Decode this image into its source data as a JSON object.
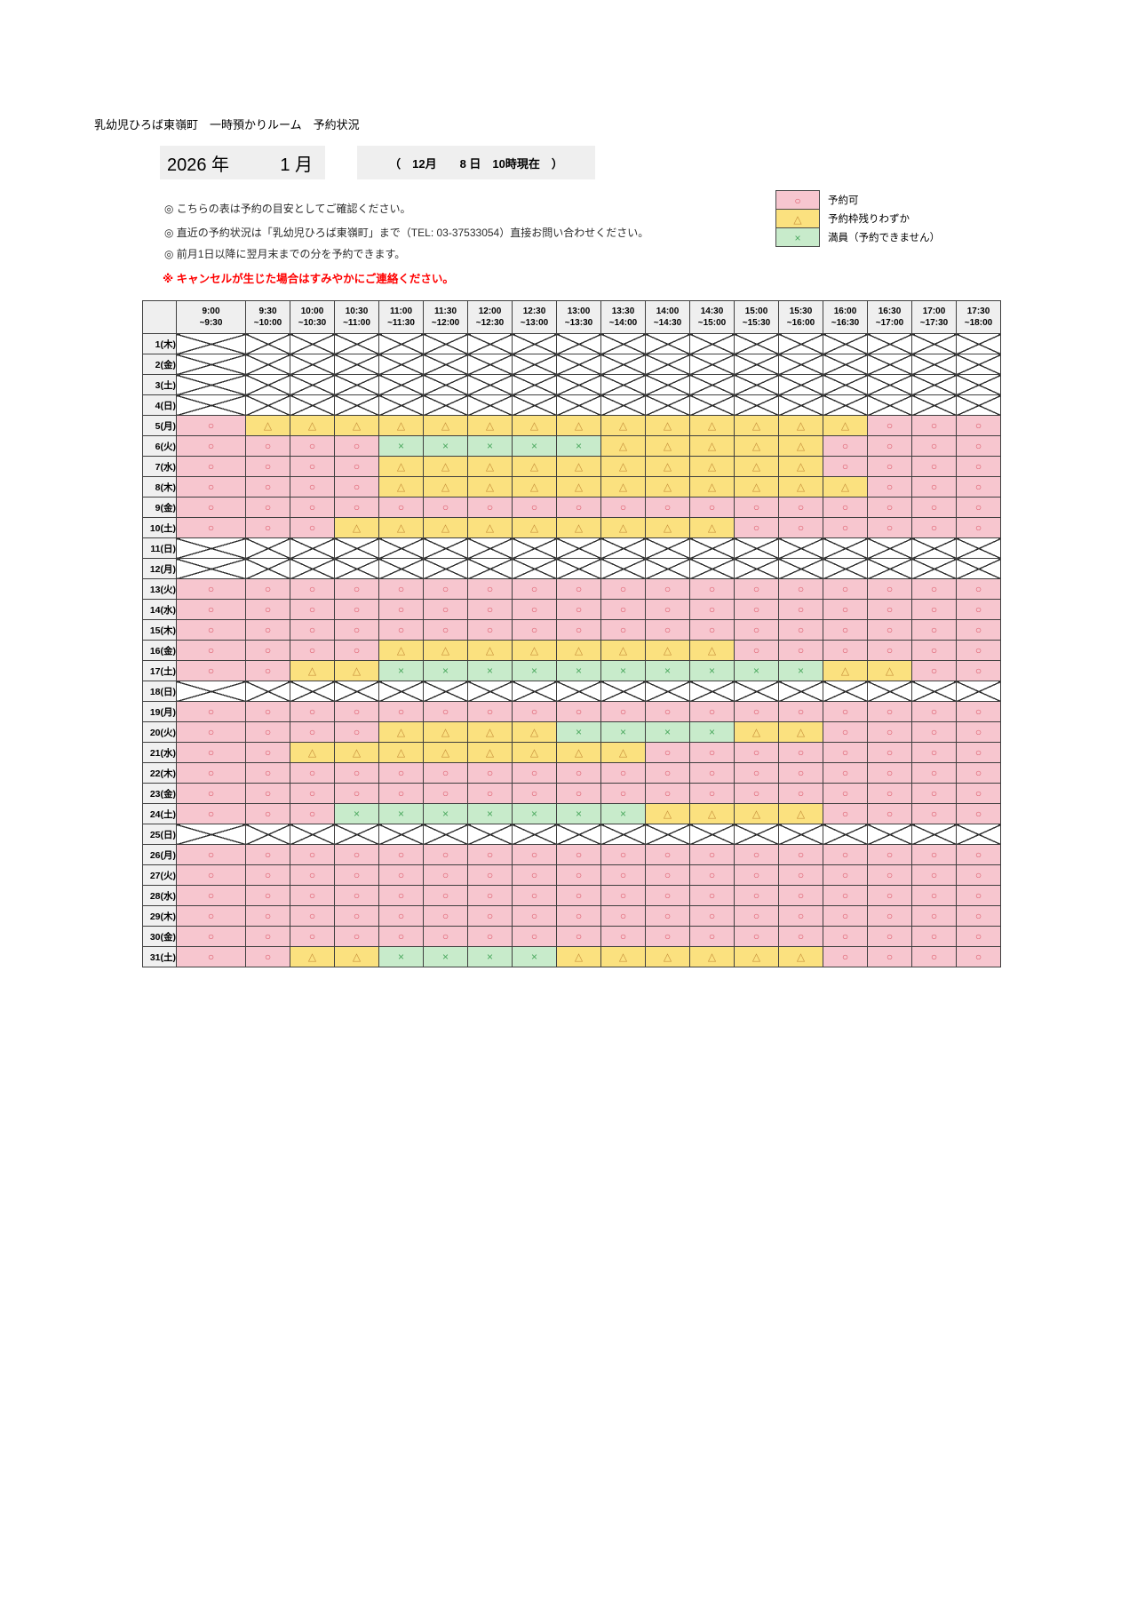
{
  "page": {
    "title": "乳幼児ひろば東嶺町　一時預かりルーム　予約状況"
  },
  "period": {
    "year_label": "2026 年",
    "month_label": "1 月"
  },
  "as_of_label": "（　12月　　8 日　10時現在　）",
  "notes": [
    "◎ こちらの表は予約の目安としてご確認ください。",
    "◎ 直近の予約状況は「乳幼児ひろば東嶺町」まで（TEL: 03-37533054）直接お問い合わせください。",
    "◎ 前月1日以降に翌月末までの分を予約できます。"
  ],
  "cancel_note": "※ キャンセルが生じた場合はすみやかにご連絡ください。",
  "legend": [
    {
      "code": "O",
      "symbol": "○",
      "label": "予約可"
    },
    {
      "code": "T",
      "symbol": "△",
      "label": "予約枠残りわずか"
    },
    {
      "code": "X",
      "symbol": "×",
      "label": "満員（予約できません）"
    }
  ],
  "status_map": {
    "O": {
      "symbol": "○",
      "bg": "#F7C6CF",
      "fg": "#DB5666",
      "meaning": "予約可"
    },
    "T": {
      "symbol": "△",
      "bg": "#FBE17F",
      "fg": "#C8913C",
      "meaning": "予約枠残りわずか"
    },
    "X": {
      "symbol": "×",
      "bg": "#C8EBCB",
      "fg": "#4BA95F",
      "meaning": "満員（予約できません）"
    }
  },
  "table": {
    "time_slots": [
      {
        "start": "9:00",
        "end": "~9:30"
      },
      {
        "start": "9:30",
        "end": "~10:00"
      },
      {
        "start": "10:00",
        "end": "~10:30"
      },
      {
        "start": "10:30",
        "end": "~11:00"
      },
      {
        "start": "11:00",
        "end": "~11:30"
      },
      {
        "start": "11:30",
        "end": "~12:00"
      },
      {
        "start": "12:00",
        "end": "~12:30"
      },
      {
        "start": "12:30",
        "end": "~13:00"
      },
      {
        "start": "13:00",
        "end": "~13:30"
      },
      {
        "start": "13:30",
        "end": "~14:00"
      },
      {
        "start": "14:00",
        "end": "~14:30"
      },
      {
        "start": "14:30",
        "end": "~15:00"
      },
      {
        "start": "15:00",
        "end": "~15:30"
      },
      {
        "start": "15:30",
        "end": "~16:00"
      },
      {
        "start": "16:00",
        "end": "~16:30"
      },
      {
        "start": "16:30",
        "end": "~17:00"
      },
      {
        "start": "17:00",
        "end": "~17:30"
      },
      {
        "start": "17:30",
        "end": "~18:00"
      }
    ],
    "rows": [
      {
        "date": "1(木)",
        "closed": true,
        "cells": ""
      },
      {
        "date": "2(金)",
        "closed": true,
        "cells": ""
      },
      {
        "date": "3(土)",
        "closed": true,
        "cells": ""
      },
      {
        "date": "4(日)",
        "closed": true,
        "cells": ""
      },
      {
        "date": "5(月)",
        "closed": false,
        "cells": "OTTTTTTTTTTTTTTOOO"
      },
      {
        "date": "6(火)",
        "closed": false,
        "cells": "OOOOXXXXXTTTTTOOOO"
      },
      {
        "date": "7(水)",
        "closed": false,
        "cells": "OOOOTTTTTTTTTTOOOO"
      },
      {
        "date": "8(木)",
        "closed": false,
        "cells": "OOOOTTTTTTTTTTTOOO"
      },
      {
        "date": "9(金)",
        "closed": false,
        "cells": "OOOOOOOOOOOOOOOOOO"
      },
      {
        "date": "10(土)",
        "closed": false,
        "cells": "OOOTTTTTTTTTOOOOOO"
      },
      {
        "date": "11(日)",
        "closed": true,
        "cells": ""
      },
      {
        "date": "12(月)",
        "closed": true,
        "cells": ""
      },
      {
        "date": "13(火)",
        "closed": false,
        "cells": "OOOOOOOOOOOOOOOOOO"
      },
      {
        "date": "14(水)",
        "closed": false,
        "cells": "OOOOOOOOOOOOOOOOOO"
      },
      {
        "date": "15(木)",
        "closed": false,
        "cells": "OOOOOOOOOOOOOOOOOO"
      },
      {
        "date": "16(金)",
        "closed": false,
        "cells": "OOOOTTTTTTTTOOOOOO"
      },
      {
        "date": "17(土)",
        "closed": false,
        "cells": "OOTTXXXXXXXXXXTTOO"
      },
      {
        "date": "18(日)",
        "closed": true,
        "cells": ""
      },
      {
        "date": "19(月)",
        "closed": false,
        "cells": "OOOOOOOOOOOOOOOOOO"
      },
      {
        "date": "20(火)",
        "closed": false,
        "cells": "OOOOTTTTXXXXTTOOOO"
      },
      {
        "date": "21(水)",
        "closed": false,
        "cells": "OOTTTTTTTTOOOOOOOO"
      },
      {
        "date": "22(木)",
        "closed": false,
        "cells": "OOOOOOOOOOOOOOOOOO"
      },
      {
        "date": "23(金)",
        "closed": false,
        "cells": "OOOOOOOOOOOOOOOOOO"
      },
      {
        "date": "24(土)",
        "closed": false,
        "cells": "OOOXXXXXXXTTTTOOOO"
      },
      {
        "date": "25(日)",
        "closed": true,
        "cells": ""
      },
      {
        "date": "26(月)",
        "closed": false,
        "cells": "OOOOOOOOOOOOOOOOOO"
      },
      {
        "date": "27(火)",
        "closed": false,
        "cells": "OOOOOOOOOOOOOOOOOO"
      },
      {
        "date": "28(水)",
        "closed": false,
        "cells": "OOOOOOOOOOOOOOOOOO"
      },
      {
        "date": "29(木)",
        "closed": false,
        "cells": "OOOOOOOOOOOOOOOOOO"
      },
      {
        "date": "30(金)",
        "closed": false,
        "cells": "OOOOOOOOOOOOOOOOOO"
      },
      {
        "date": "31(土)",
        "closed": false,
        "cells": "OOTTXXXXTTTTTTOOOO"
      }
    ]
  },
  "colors": {
    "available_bg": "#F7C6CF",
    "few_bg": "#FBE17F",
    "full_bg": "#C8EBCB",
    "header_bg": "#EFEFEF",
    "note_red": "#FF0000",
    "grid": "#3F3F3F"
  }
}
